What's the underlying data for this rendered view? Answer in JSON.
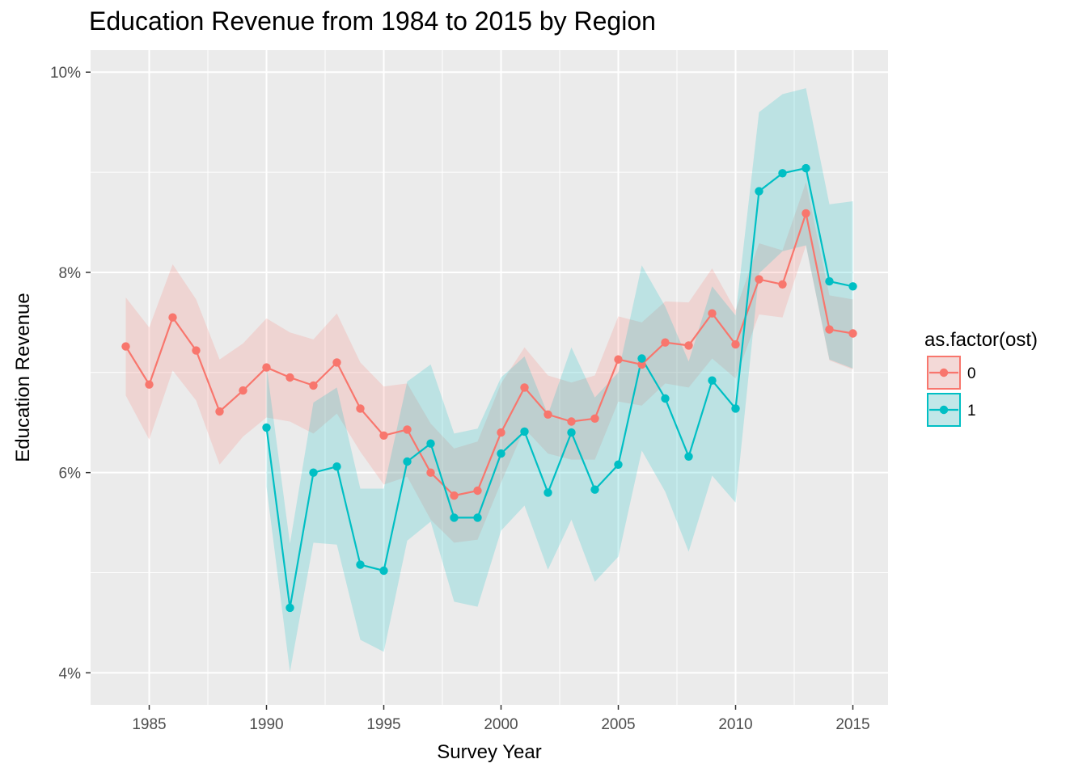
{
  "chart_data": {
    "type": "line",
    "title": "Education Revenue from 1984 to 2015 by Region",
    "xlabel": "Survey Year",
    "ylabel": "Education Revenue",
    "xlim": [
      1982.5,
      2016.5
    ],
    "ylim": [
      3.68,
      10.22
    ],
    "x_ticks": [
      1985,
      1990,
      1995,
      2000,
      2005,
      2010,
      2015
    ],
    "x_tick_labels": [
      "1985",
      "1990",
      "1995",
      "2000",
      "2005",
      "2010",
      "2015"
    ],
    "y_ticks": [
      4,
      6,
      8,
      10
    ],
    "y_tick_labels": [
      "4%",
      "6%",
      "8%",
      "10%"
    ],
    "grid": true,
    "legend": {
      "title": "as.factor(ost)",
      "placement": "right"
    },
    "series": [
      {
        "name": "0",
        "color": "#F8766D",
        "x": [
          1984,
          1985,
          1986,
          1987,
          1988,
          1989,
          1990,
          1991,
          1992,
          1993,
          1994,
          1995,
          1996,
          1997,
          1998,
          1999,
          2000,
          2001,
          2002,
          2003,
          2004,
          2005,
          2006,
          2007,
          2008,
          2009,
          2010,
          2011,
          2012,
          2013,
          2014,
          2015
        ],
        "values": [
          7.26,
          6.88,
          7.55,
          7.22,
          6.61,
          6.82,
          7.05,
          6.95,
          6.87,
          7.1,
          6.64,
          6.37,
          6.43,
          6.0,
          5.77,
          5.82,
          6.4,
          6.85,
          6.58,
          6.51,
          6.54,
          7.13,
          7.08,
          7.3,
          7.27,
          7.59,
          7.28,
          7.93,
          7.88,
          8.59,
          7.43,
          7.39
        ],
        "lower": [
          6.77,
          6.33,
          7.02,
          6.72,
          6.08,
          6.36,
          6.55,
          6.51,
          6.39,
          6.59,
          6.21,
          5.88,
          5.96,
          5.53,
          5.3,
          5.33,
          5.9,
          6.44,
          6.19,
          6.13,
          6.13,
          6.71,
          6.67,
          6.89,
          6.85,
          7.14,
          6.94,
          7.58,
          7.55,
          8.27,
          7.12,
          7.03
        ],
        "upper": [
          7.75,
          7.45,
          8.08,
          7.73,
          7.13,
          7.29,
          7.54,
          7.4,
          7.33,
          7.59,
          7.1,
          6.86,
          6.89,
          6.49,
          6.24,
          6.31,
          6.89,
          7.25,
          6.97,
          6.9,
          6.97,
          7.56,
          7.5,
          7.71,
          7.7,
          8.04,
          7.62,
          8.29,
          8.22,
          8.9,
          7.77,
          7.73
        ]
      },
      {
        "name": "1",
        "color": "#00BFC4",
        "x": [
          1990,
          1991,
          1992,
          1993,
          1994,
          1995,
          1996,
          1997,
          1998,
          1999,
          2000,
          2001,
          2002,
          2003,
          2004,
          2005,
          2006,
          2007,
          2008,
          2009,
          2010,
          2011,
          2012,
          2013,
          2014,
          2015
        ],
        "values": [
          6.45,
          4.65,
          6.0,
          6.06,
          5.08,
          5.02,
          6.11,
          6.29,
          5.55,
          5.55,
          6.19,
          6.41,
          5.8,
          6.4,
          5.83,
          6.08,
          7.14,
          6.74,
          6.16,
          6.92,
          6.64,
          8.81,
          8.99,
          9.04,
          7.91,
          7.86
        ],
        "lower": [
          5.86,
          4.01,
          5.3,
          5.28,
          4.33,
          4.21,
          5.32,
          5.51,
          4.71,
          4.66,
          5.42,
          5.67,
          5.03,
          5.53,
          4.91,
          5.16,
          6.22,
          5.81,
          5.21,
          5.97,
          5.7,
          7.99,
          8.21,
          8.27,
          7.13,
          7.04
        ],
        "upper": [
          7.07,
          5.29,
          6.7,
          6.85,
          5.84,
          5.84,
          6.91,
          7.08,
          6.39,
          6.44,
          6.95,
          7.16,
          6.58,
          7.25,
          6.75,
          7.0,
          8.07,
          7.66,
          7.11,
          7.86,
          7.57,
          9.6,
          9.78,
          9.84,
          8.68,
          8.71
        ]
      }
    ]
  }
}
